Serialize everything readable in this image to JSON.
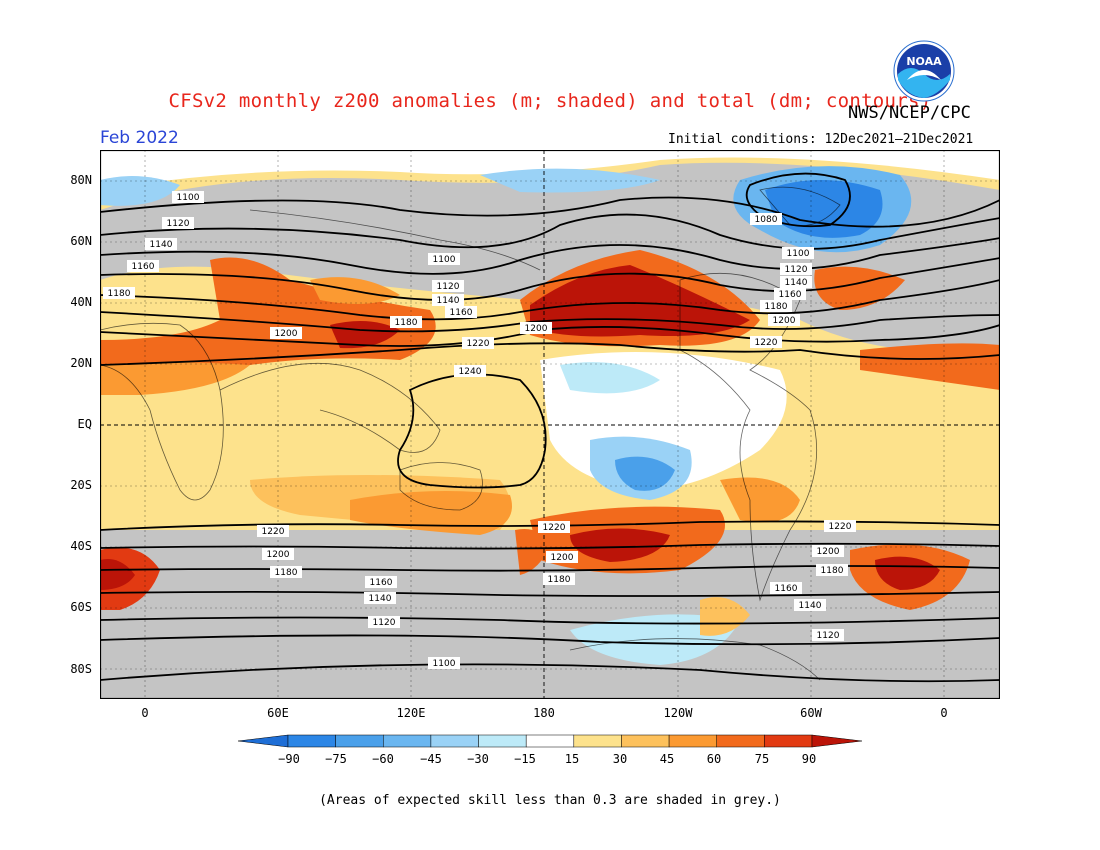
{
  "header": {
    "title": "CFSv2 monthly z200 anomalies (m; shaded) and total (dm; contours)",
    "org": "NWS/NCEP/CPC",
    "month": "Feb 2022",
    "initial_conditions": "Initial conditions: 12Dec2021–21Dec2021",
    "logo_text": "NOAA"
  },
  "axes": {
    "lat_labels": [
      "80N",
      "60N",
      "40N",
      "20N",
      "EQ",
      "20S",
      "40S",
      "60S",
      "80S"
    ],
    "lon_labels": [
      "0",
      "60E",
      "120E",
      "180",
      "120W",
      "60W",
      "0"
    ]
  },
  "contours": [
    {
      "value": "1080",
      "kind": "closed-low"
    },
    {
      "value": "1100"
    },
    {
      "value": "1120"
    },
    {
      "value": "1140"
    },
    {
      "value": "1160"
    },
    {
      "value": "1180"
    },
    {
      "value": "1200"
    },
    {
      "value": "1220"
    },
    {
      "value": "1240",
      "kind": "closed-high"
    }
  ],
  "colorbar": {
    "labels": [
      "−90",
      "−75",
      "−60",
      "−45",
      "−30",
      "−15",
      "15",
      "30",
      "45",
      "60",
      "75",
      "90"
    ],
    "colors": [
      "#1e6ed6",
      "#2c86e6",
      "#4aa0ea",
      "#6ab6f0",
      "#9ad2f6",
      "#bdeaf8",
      "#ffffff",
      "#fde28c",
      "#fdc15c",
      "#fb9a32",
      "#f26a1c",
      "#e23a12",
      "#bb1408"
    ],
    "skill_grey": "#c4c4c4"
  },
  "footnote": "(Areas of expected skill less than 0.3 are shaded in grey.)"
}
